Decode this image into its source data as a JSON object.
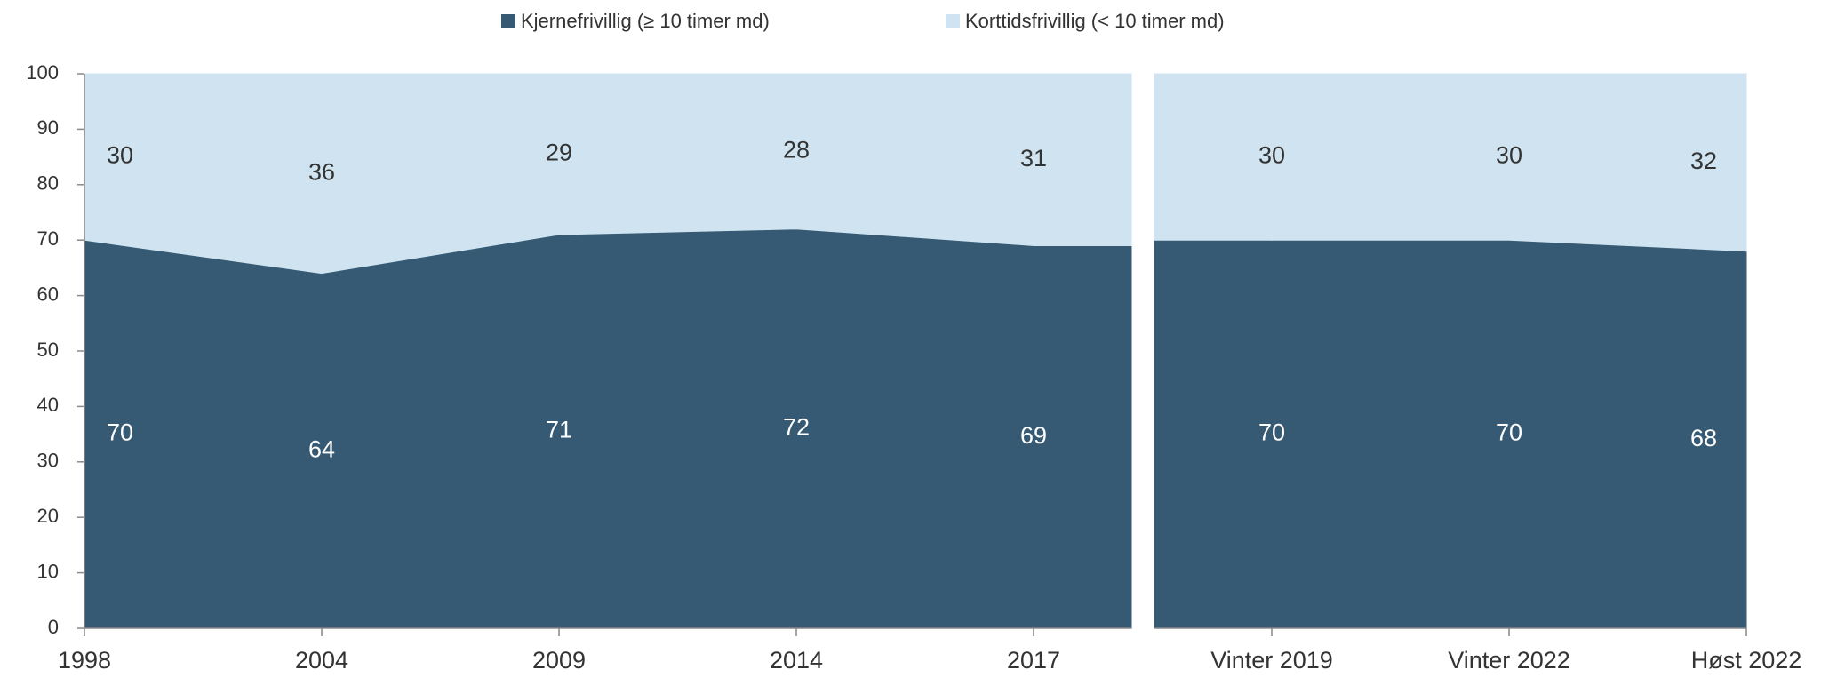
{
  "chart_data": {
    "type": "area",
    "stacked": true,
    "series": [
      {
        "name": "Kjernefrivillig (≥ 10 timer md)",
        "color": "#365a74"
      },
      {
        "name": "Korttidsfrivillig (< 10 timer md)",
        "color": "#cfe4f0"
      }
    ],
    "ylim": [
      0,
      100
    ],
    "yticks": [
      0,
      10,
      20,
      30,
      40,
      50,
      60,
      70,
      80,
      90,
      100
    ],
    "panels": [
      {
        "categories": [
          "1998",
          "2004",
          "2009",
          "2014",
          "2017"
        ],
        "series": [
          {
            "values": [
              70,
              64,
              71,
              72,
              69
            ]
          },
          {
            "values": [
              30,
              36,
              29,
              28,
              31
            ]
          }
        ]
      },
      {
        "categories": [
          "Vinter 2019",
          "Vinter 2022",
          "Høst 2022"
        ],
        "series": [
          {
            "values": [
              70,
              70,
              68
            ]
          },
          {
            "values": [
              30,
              30,
              32
            ]
          }
        ]
      }
    ]
  }
}
